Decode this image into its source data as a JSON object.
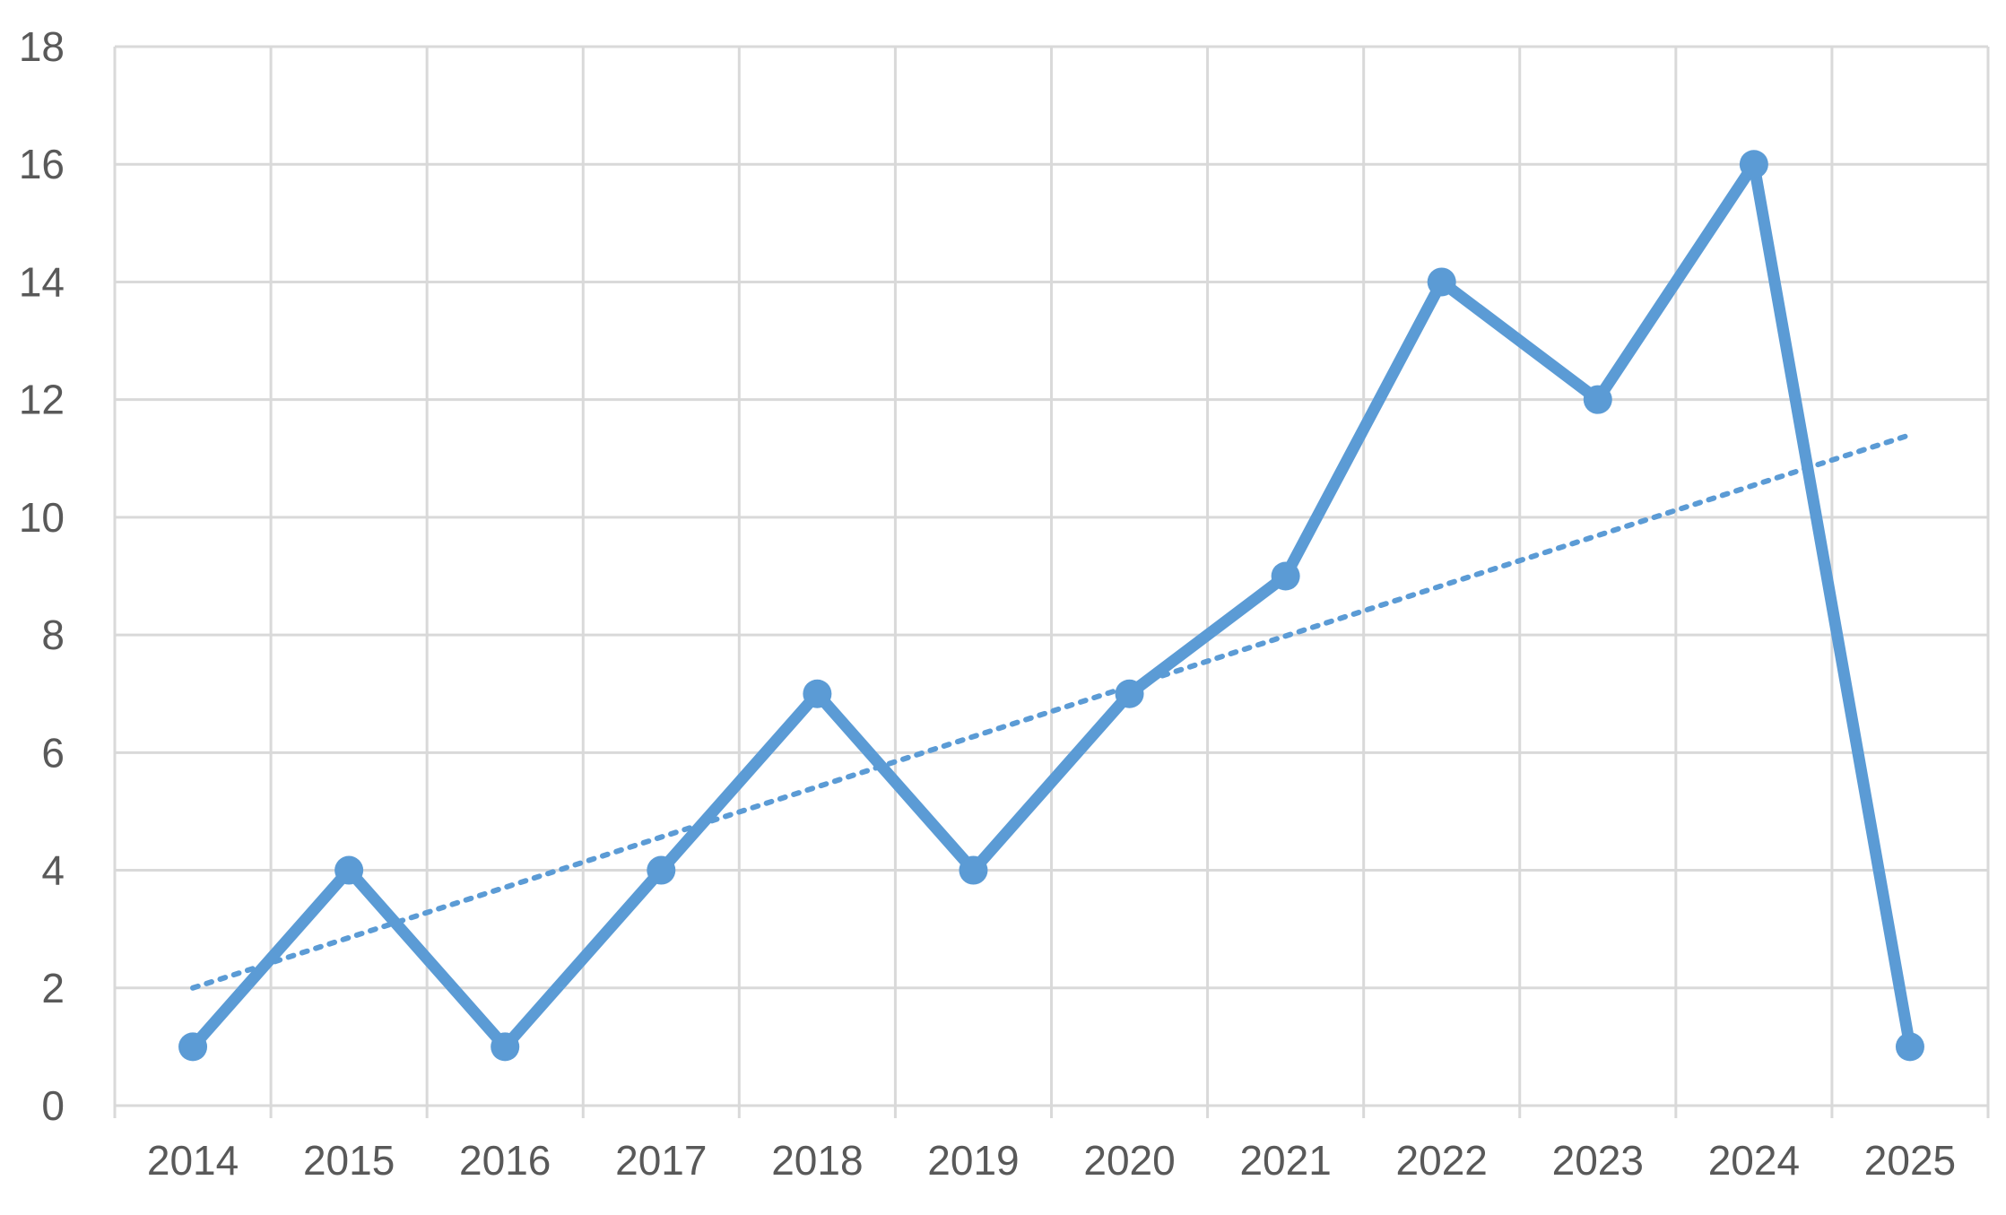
{
  "chart_data": {
    "type": "line",
    "title": "",
    "xlabel": "",
    "ylabel": "",
    "categories": [
      "2014",
      "2015",
      "2016",
      "2017",
      "2018",
      "2019",
      "2020",
      "2021",
      "2022",
      "2023",
      "2024",
      "2025"
    ],
    "y_ticks": [
      "0",
      "2",
      "4",
      "6",
      "8",
      "10",
      "12",
      "14",
      "16",
      "18"
    ],
    "ylim": [
      0,
      18
    ],
    "grid": true,
    "legend": "none",
    "series": [
      {
        "values": [
          1,
          4,
          1,
          4,
          7,
          4,
          7,
          9,
          14,
          12,
          16,
          1
        ],
        "color": "#5B9BD5",
        "markers": true
      }
    ],
    "trendline": {
      "type": "linear",
      "style": "dotted",
      "color": "#5B9BD5",
      "start_value": 2.0,
      "end_value": 11.4
    }
  }
}
